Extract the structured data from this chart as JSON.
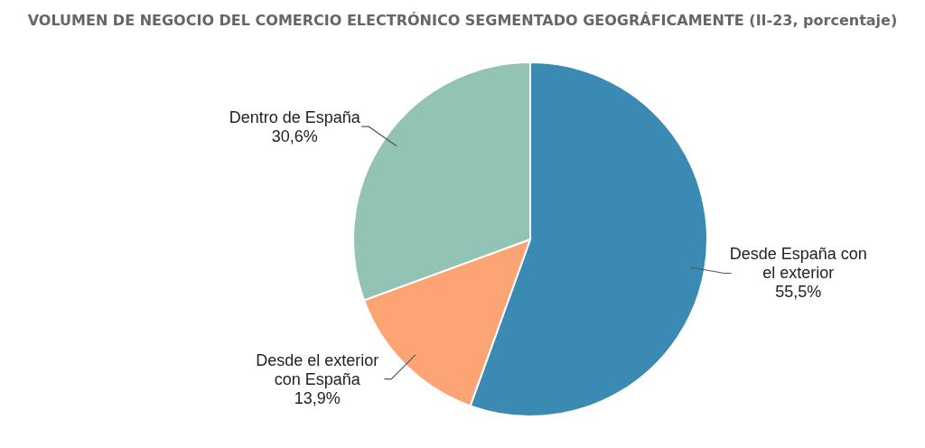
{
  "chart_data": {
    "type": "pie",
    "title": "VOLUMEN DE NEGOCIO DEL COMERCIO ELECTRÓNICO SEGMENTADO GEOGRÁFICAMENTE (II-23, porcentaje)",
    "categories": [
      "Desde España con el exterior",
      "Desde el exterior con España",
      "Dentro de España"
    ],
    "values": [
      55.5,
      13.9,
      30.6
    ],
    "colors": [
      "#3a8ab3",
      "#fca473",
      "#93c3b5"
    ],
    "value_labels": [
      "55,5%",
      "13,9%",
      "30,6%"
    ]
  }
}
